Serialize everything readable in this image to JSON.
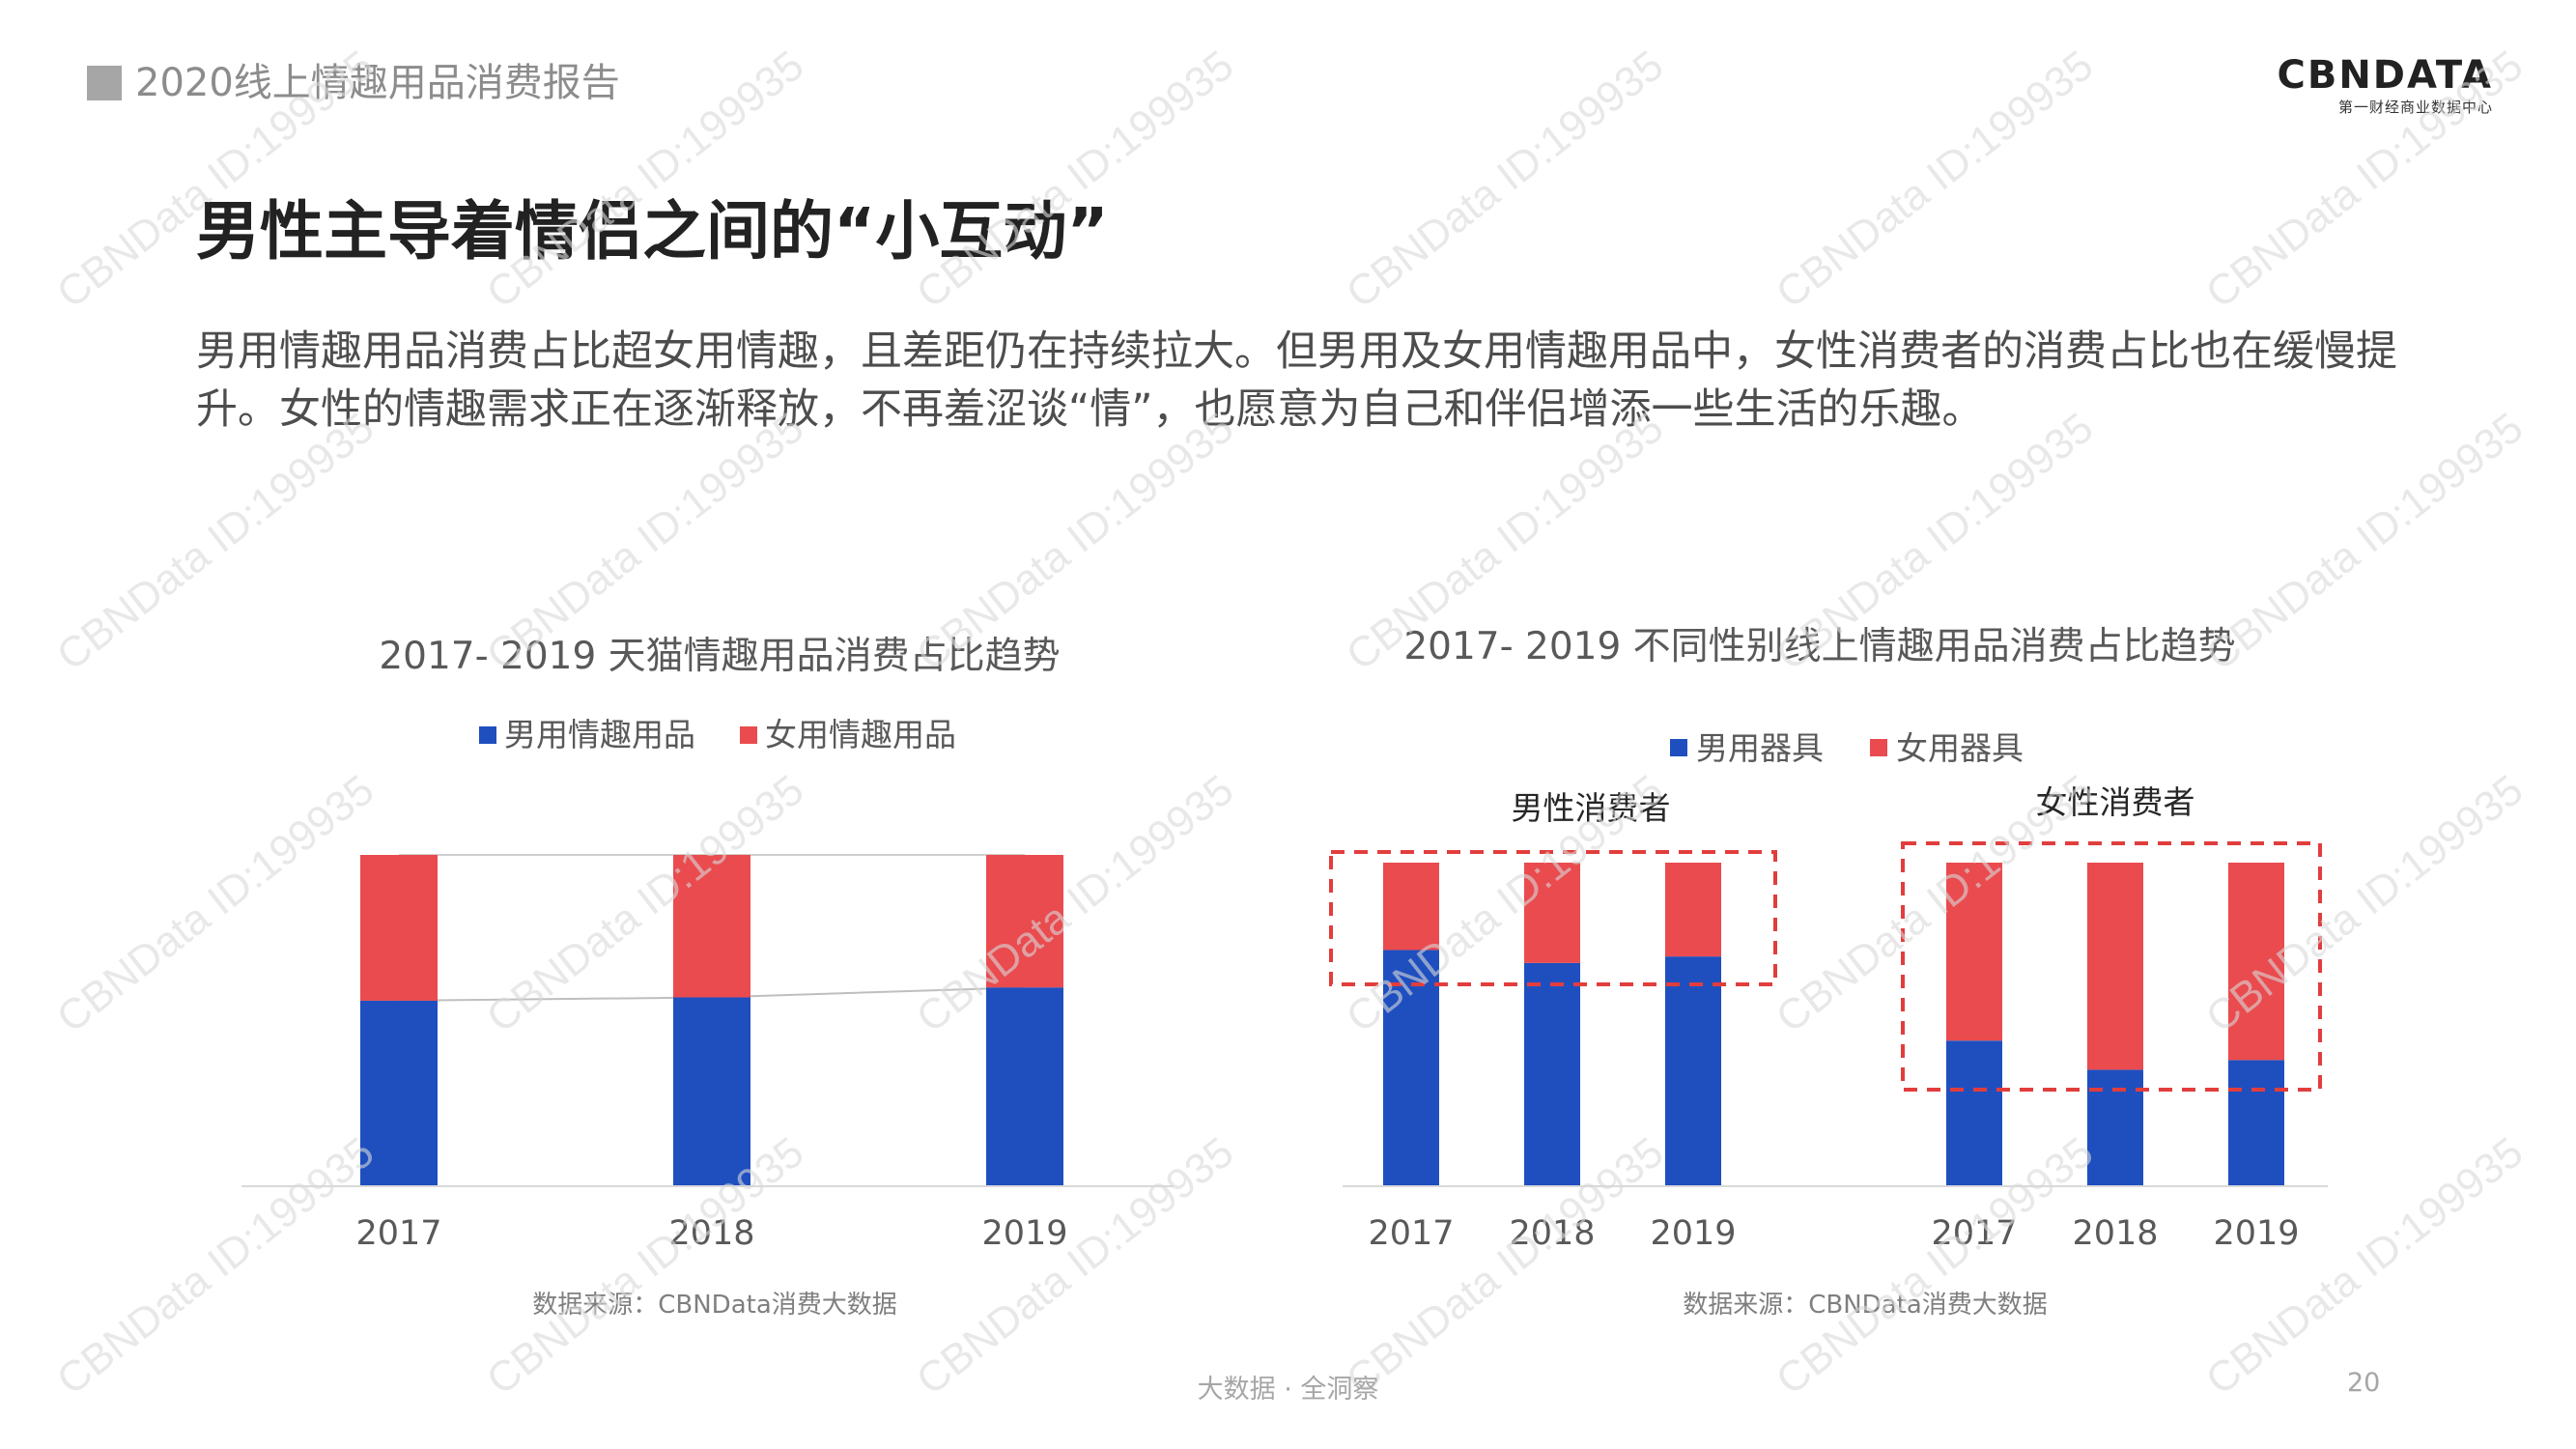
{
  "header": {
    "report_title": "2020线上情趣用品消费报告"
  },
  "logo": {
    "main": "CBNDATA",
    "sub": "第一财经商业数据中心"
  },
  "headline": "男性主导着情侣之间的“小互动”",
  "body_text": "男用情趣用品消费占比超女用情趣，且差距仍在持续拉大。但男用及女用情趣用品中，女性消费者的消费占比也在缓慢提升。女性的情趣需求正在逐渐释放，不再羞涩谈“情”，也愿意为自己和伴侣增添一些生活的乐趣。",
  "watermark": "CBNData ID:199935",
  "colors": {
    "male": "#1f4fbf",
    "female": "#e94b4f",
    "highlight": "#e23d3d",
    "axis": "#d9d9d9",
    "text": "#595959"
  },
  "chart_data": [
    {
      "type": "bar",
      "stacked": true,
      "title": "2017- 2019 天猫情趣用品消费占比趋势",
      "categories": [
        "2017",
        "2018",
        "2019"
      ],
      "series": [
        {
          "name": "男用情趣用品",
          "values": [
            56,
            57,
            60
          ]
        },
        {
          "name": "女用情趣用品",
          "values": [
            44,
            43,
            40
          ]
        }
      ],
      "ylim": [
        0,
        100
      ],
      "legend": "top",
      "source": "数据来源：CBNData消费大数据"
    },
    {
      "type": "bar",
      "stacked": true,
      "title": "2017- 2019 不同性别线上情趣用品消费占比趋势",
      "groups": [
        {
          "label": "男性消费者",
          "categories": [
            "2017",
            "2018",
            "2019"
          ]
        },
        {
          "label": "女性消费者",
          "categories": [
            "2017",
            "2018",
            "2019"
          ]
        }
      ],
      "series": [
        {
          "name": "男用器具",
          "values": [
            73,
            69,
            71,
            45,
            36,
            39
          ]
        },
        {
          "name": "女用器具",
          "values": [
            27,
            31,
            29,
            55,
            64,
            61
          ]
        }
      ],
      "ylim": [
        0,
        100
      ],
      "legend": "top",
      "source": "数据来源：CBNData消费大数据"
    }
  ],
  "footer": {
    "center": "大数据 · 全洞察",
    "page_number": "20"
  }
}
